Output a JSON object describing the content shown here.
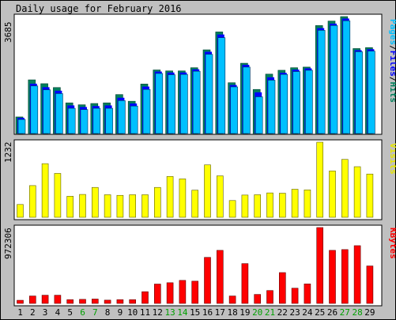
{
  "title": "Daily usage for February 2016",
  "colors": {
    "background": "#c0c0c0",
    "panel": "#ffffff",
    "hits": "#00805c",
    "files": "#0000ff",
    "pages": "#00c0ff",
    "visits": "#ffff00",
    "kbytes": "#ff0000",
    "weekend_label": "#00a000",
    "weekday_label": "#000000"
  },
  "chart_data": [
    {
      "type": "bar",
      "name": "pages-files-hits",
      "title": "Daily usage for February 2016",
      "ylabel": "Pages/Files/Hits",
      "ylabel_parts": [
        "Pages",
        "/",
        "Files",
        "/",
        "Hits"
      ],
      "ymax_label": "3685",
      "ylim": [
        0,
        3685
      ],
      "categories": [
        "1",
        "2",
        "3",
        "4",
        "5",
        "6",
        "7",
        "8",
        "9",
        "10",
        "11",
        "12",
        "13",
        "14",
        "15",
        "16",
        "17",
        "18",
        "19",
        "20",
        "21",
        "22",
        "23",
        "24",
        "25",
        "26",
        "27",
        "28",
        "29"
      ],
      "series": [
        {
          "name": "Hits",
          "values": [
            520,
            1680,
            1560,
            1440,
            960,
            900,
            940,
            960,
            1220,
            1010,
            1550,
            1990,
            1960,
            1960,
            2060,
            2620,
            3180,
            1590,
            2200,
            1380,
            1860,
            1980,
            2060,
            2080,
            3380,
            3520,
            3660,
            2660,
            2690
          ]
        },
        {
          "name": "Files",
          "values": [
            490,
            1560,
            1450,
            1340,
            880,
            830,
            860,
            880,
            1120,
            940,
            1470,
            1940,
            1910,
            1910,
            2010,
            2560,
            3100,
            1520,
            2150,
            1290,
            1760,
            1900,
            2000,
            2040,
            3300,
            3440,
            3600,
            2610,
            2640
          ]
        },
        {
          "name": "Pages",
          "values": [
            440,
            1490,
            1370,
            1250,
            790,
            750,
            790,
            790,
            1030,
            860,
            1380,
            1880,
            1840,
            1850,
            1950,
            2480,
            3000,
            1460,
            2080,
            1150,
            1670,
            1850,
            1940,
            1980,
            3230,
            3380,
            3530,
            2560,
            2580
          ]
        }
      ]
    },
    {
      "type": "bar",
      "name": "visits",
      "ylabel": "Visits",
      "ymax_label": "1232",
      "ylim": [
        0,
        1232
      ],
      "categories": [
        "1",
        "2",
        "3",
        "4",
        "5",
        "6",
        "7",
        "8",
        "9",
        "10",
        "11",
        "12",
        "13",
        "14",
        "15",
        "16",
        "17",
        "18",
        "19",
        "20",
        "21",
        "22",
        "23",
        "24",
        "25",
        "26",
        "27",
        "28",
        "29"
      ],
      "series": [
        {
          "name": "Visits",
          "values": [
            210,
            520,
            880,
            720,
            345,
            375,
            490,
            370,
            360,
            370,
            370,
            490,
            670,
            630,
            445,
            860,
            680,
            275,
            365,
            370,
            400,
            395,
            460,
            450,
            1232,
            760,
            950,
            830,
            710
          ]
        }
      ]
    },
    {
      "type": "bar",
      "name": "kbytes",
      "ylabel": "KBytes",
      "ymax_label": "972306",
      "ylim": [
        0,
        972306
      ],
      "categories": [
        "1",
        "2",
        "3",
        "4",
        "5",
        "6",
        "7",
        "8",
        "9",
        "10",
        "11",
        "12",
        "13",
        "14",
        "15",
        "16",
        "17",
        "18",
        "19",
        "20",
        "21",
        "22",
        "23",
        "24",
        "25",
        "26",
        "27",
        "28",
        "29"
      ],
      "series": [
        {
          "name": "KBytes",
          "values": [
            40000,
            95000,
            105000,
            105000,
            48000,
            52000,
            56000,
            42000,
            48000,
            48000,
            150000,
            248000,
            265000,
            295000,
            285000,
            590000,
            680000,
            95000,
            510000,
            115000,
            165000,
            395000,
            195000,
            250000,
            972306,
            680000,
            690000,
            740000,
            480000
          ]
        }
      ]
    }
  ],
  "weekend_days": [
    "6",
    "7",
    "13",
    "14",
    "20",
    "21",
    "27",
    "28"
  ]
}
